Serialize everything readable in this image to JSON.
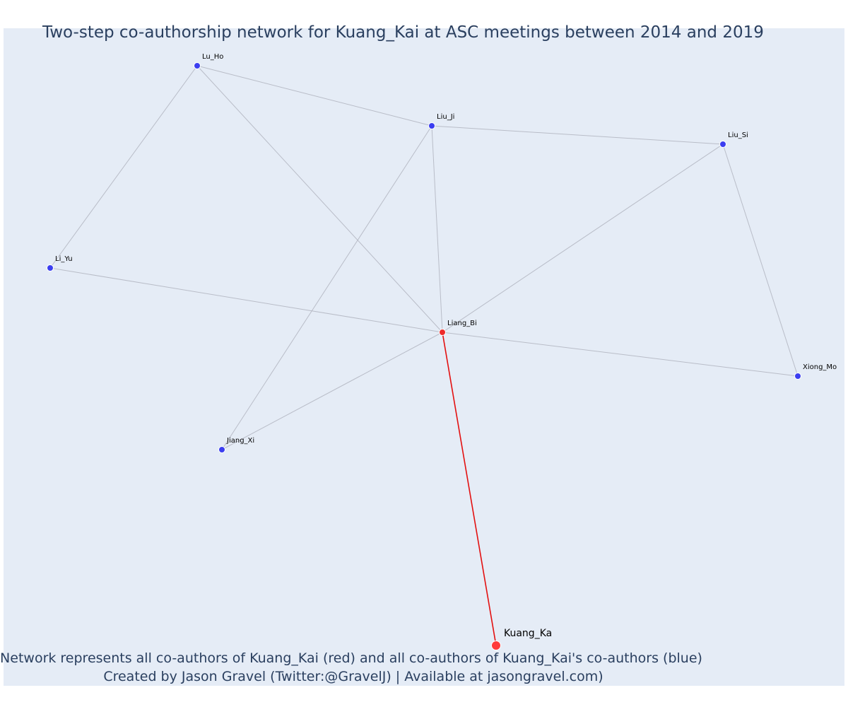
{
  "title": "Two-step co-authorship network for Kuang_Kai at ASC meetings between 2014 and 2019",
  "caption": {
    "line1": "Network represents all co-authors of Kuang_Kai (red) and all co-authors of Kuang_Kai's co-authors (blue)",
    "line2": "Created by Jason Gravel (Twitter:@GravelJ) | Available at jasongravel.com)"
  },
  "colors": {
    "background": "#e5ecf6",
    "focal_node": "#ff3b3b",
    "coauthor_node": "#ee2a2a",
    "second_step_node": "#3b3ef0",
    "focal_edge": "#e31010",
    "other_edge": "#b9bdc8",
    "title": "#2a3f5f"
  },
  "network": {
    "nodes": [
      {
        "id": "Kuang_Ka",
        "label": "Kuang_Ka",
        "group": "focal"
      },
      {
        "id": "Liang_Bi",
        "label": "Liang_Bi",
        "group": "coauthor"
      },
      {
        "id": "Lu_Ho",
        "label": "Lu_Ho",
        "group": "second_step"
      },
      {
        "id": "Liu_Ji",
        "label": "Liu_Ji",
        "group": "second_step"
      },
      {
        "id": "Liu_Si",
        "label": "Liu_Si",
        "group": "second_step"
      },
      {
        "id": "Li_Yu",
        "label": "Li_Yu",
        "group": "second_step"
      },
      {
        "id": "Xiong_Mo",
        "label": "Xiong_Mo",
        "group": "second_step"
      },
      {
        "id": "Jiang_Xi",
        "label": "Jiang_Xi",
        "group": "second_step"
      }
    ],
    "edges": [
      {
        "source": "Kuang_Ka",
        "target": "Liang_Bi",
        "focal": true
      },
      {
        "source": "Liang_Bi",
        "target": "Lu_Ho",
        "focal": false
      },
      {
        "source": "Liang_Bi",
        "target": "Liu_Ji",
        "focal": false
      },
      {
        "source": "Liang_Bi",
        "target": "Liu_Si",
        "focal": false
      },
      {
        "source": "Liang_Bi",
        "target": "Li_Yu",
        "focal": false
      },
      {
        "source": "Liang_Bi",
        "target": "Xiong_Mo",
        "focal": false
      },
      {
        "source": "Liang_Bi",
        "target": "Jiang_Xi",
        "focal": false
      },
      {
        "source": "Lu_Ho",
        "target": "Liu_Ji",
        "focal": false
      },
      {
        "source": "Lu_Ho",
        "target": "Li_Yu",
        "focal": false
      },
      {
        "source": "Liu_Ji",
        "target": "Liu_Si",
        "focal": false
      },
      {
        "source": "Liu_Ji",
        "target": "Jiang_Xi",
        "focal": false
      },
      {
        "source": "Liu_Si",
        "target": "Xiong_Mo",
        "focal": false
      }
    ]
  }
}
